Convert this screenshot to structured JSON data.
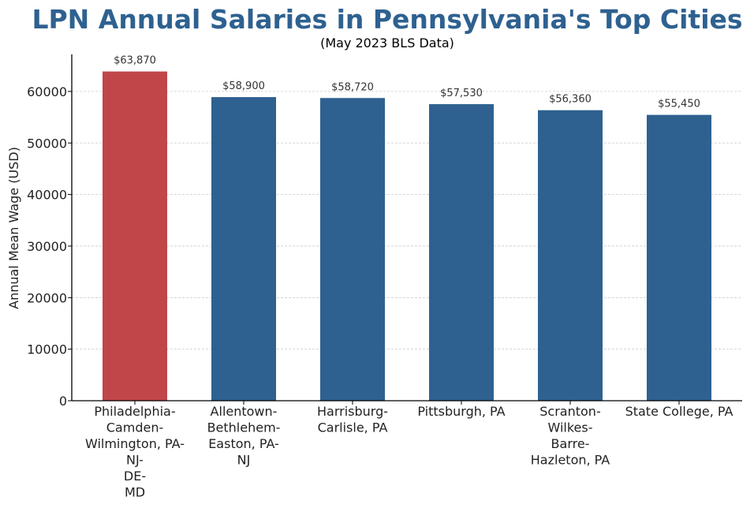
{
  "chart_data": {
    "type": "bar",
    "title": "LPN Annual Salaries in Pennsylvania's Top Cities",
    "subtitle": "(May 2023 BLS Data)",
    "xlabel": "",
    "ylabel": "Annual Mean Wage (USD)",
    "categories": [
      "Philadelphia-Camden-Wilmington, PA-NJ-DE-MD",
      "Allentown-Bethlehem-Easton, PA-NJ",
      "Harrisburg-Carlisle, PA",
      "Pittsburgh, PA",
      "Scranton-Wilkes-Barre-Hazleton, PA",
      "State College, PA"
    ],
    "category_lines": [
      [
        "Philadelphia-",
        "Camden-",
        "Wilmington, PA-",
        "NJ-",
        "DE-",
        "MD"
      ],
      [
        "Allentown-",
        "Bethlehem-",
        "Easton, PA-",
        "NJ"
      ],
      [
        "Harrisburg-",
        "Carlisle, PA"
      ],
      [
        "Pittsburgh, PA"
      ],
      [
        "Scranton-",
        "Wilkes-",
        "Barre-",
        "Hazleton, PA"
      ],
      [
        "State College, PA"
      ]
    ],
    "values": [
      63870,
      58900,
      58720,
      57530,
      56360,
      55450
    ],
    "value_labels": [
      "$63,870",
      "$58,900",
      "$58,720",
      "$57,530",
      "$56,360",
      "$55,450"
    ],
    "bar_colors": [
      "#c0464a",
      "#2e6190",
      "#2e6190",
      "#2e6190",
      "#2e6190",
      "#2e6190"
    ],
    "yticks": [
      0,
      10000,
      20000,
      30000,
      40000,
      50000,
      60000
    ],
    "ylim": [
      0,
      67000
    ],
    "grid": "y-dashed",
    "legend": "none"
  },
  "colors": {
    "title": "#2e6190",
    "highlight": "#c0464a",
    "bar": "#2e6190",
    "grid": "#cccccc",
    "axis": "#000000"
  }
}
